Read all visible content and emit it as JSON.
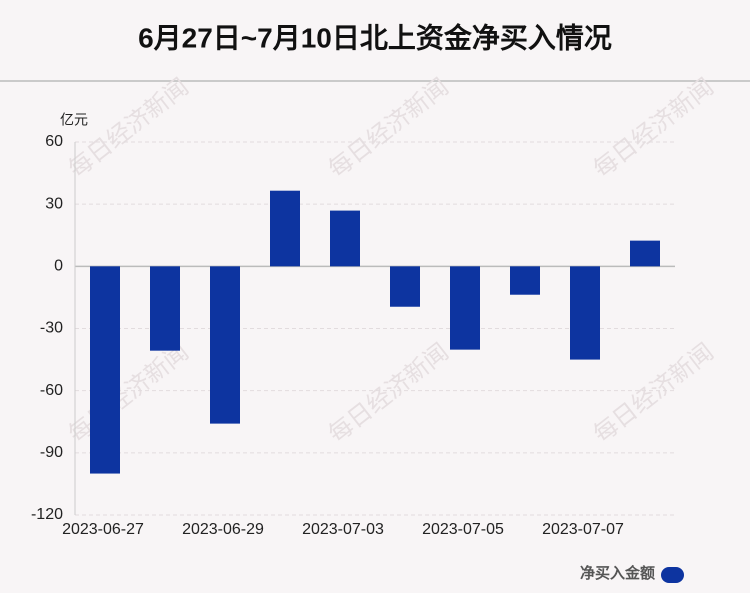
{
  "chart_data": {
    "type": "bar",
    "title": "6月27日~7月10日北上资金净买入情况",
    "y_label": "亿元",
    "watermark": "每日经济新闻",
    "categories": [
      "2023-06-27",
      null,
      "2023-06-29",
      null,
      "2023-07-03",
      null,
      "2023-07-05",
      null,
      "2023-07-07",
      null
    ],
    "series": [
      {
        "name": "净买入金额",
        "color": "#0d34a0",
        "values": [
          -100,
          -40.7,
          -75.9,
          36.5,
          26.9,
          -19.5,
          -40.2,
          -13.7,
          -45,
          12.4
        ]
      }
    ],
    "ylim": [
      -120,
      60
    ],
    "yticks": [
      -120,
      -90,
      -60,
      -30,
      0,
      30,
      60
    ],
    "grid": true,
    "legend": "bottom-right"
  }
}
